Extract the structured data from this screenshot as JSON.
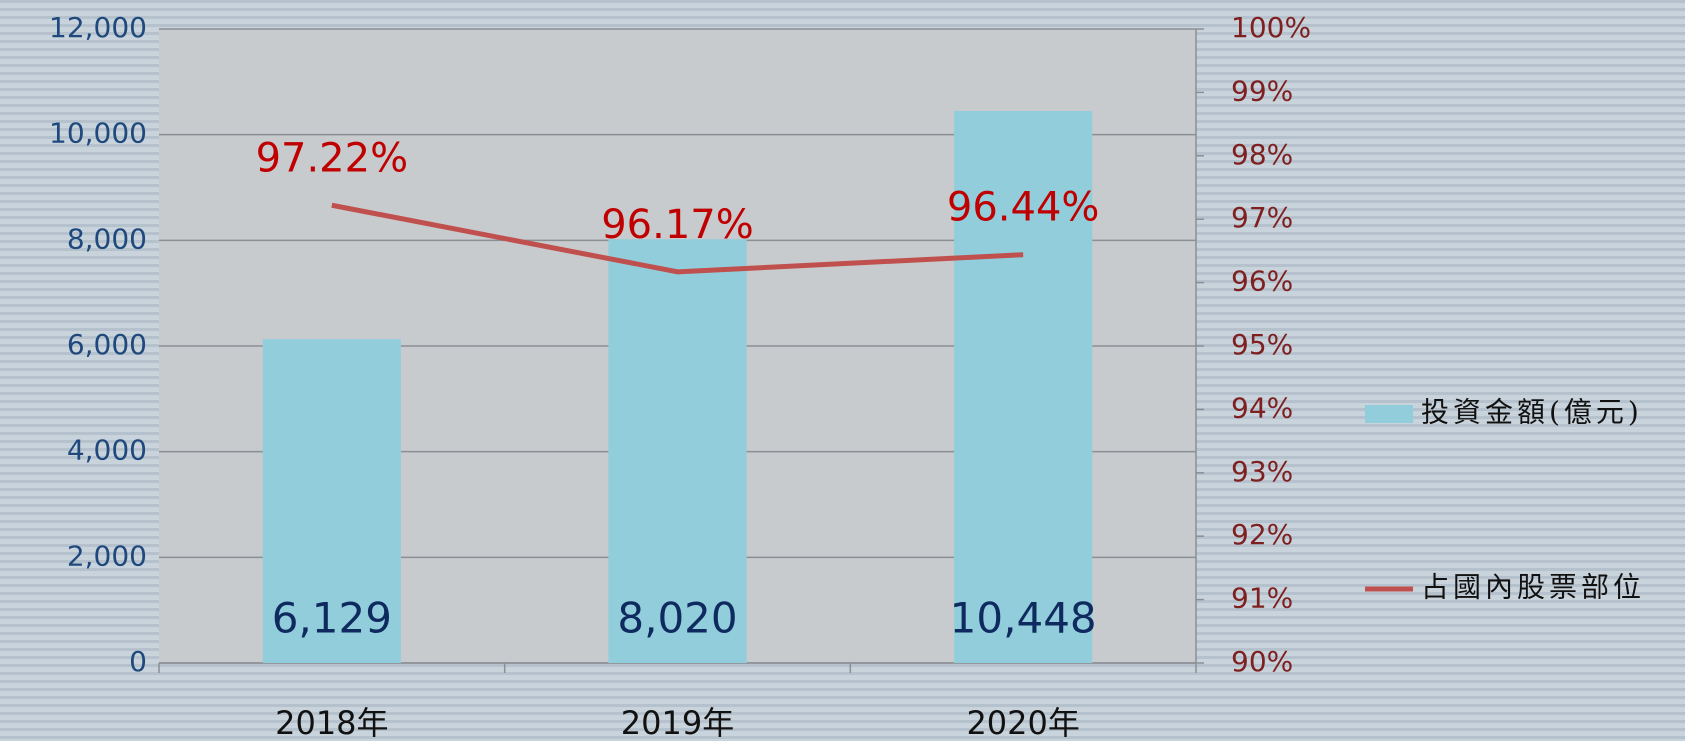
{
  "chart_data": {
    "type": "bar",
    "categories": [
      "2018年",
      "2019年",
      "2020年"
    ],
    "series": [
      {
        "name": "投資金額(億元)",
        "type": "bar",
        "color": "#92cddc",
        "values": [
          6129,
          8020,
          10448
        ],
        "value_labels": [
          "6,129",
          "8,020",
          "10,448"
        ]
      },
      {
        "name": "占國內股票部位",
        "type": "line",
        "axis": "y2",
        "color": "#c0504d",
        "values": [
          97.22,
          96.17,
          96.44
        ],
        "value_labels": [
          "97.22%",
          "96.17%",
          "96.44%"
        ]
      }
    ],
    "ylim": [
      0,
      12000
    ],
    "yticks": [
      0,
      {
        "value": 2000,
        "label": "2,000"
      },
      {
        "value": 4000,
        "label": "4,000"
      },
      {
        "value": 6000,
        "label": "6,000"
      },
      {
        "value": 8000,
        "label": "8,000"
      },
      {
        "value": 10000,
        "label": "10,000"
      },
      {
        "value": 12000,
        "label": "12,000"
      }
    ],
    "y2lim": [
      90,
      100
    ],
    "y2ticks": [
      {
        "value": 90,
        "label": "90%"
      },
      {
        "value": 91,
        "label": "91%"
      },
      {
        "value": 92,
        "label": "92%"
      },
      {
        "value": 93,
        "label": "93%"
      },
      {
        "value": 94,
        "label": "94%"
      },
      {
        "value": 95,
        "label": "95%"
      },
      {
        "value": 96,
        "label": "96%"
      },
      {
        "value": 97,
        "label": "97%"
      },
      {
        "value": 98,
        "label": "98%"
      },
      {
        "value": 99,
        "label": "99%"
      },
      {
        "value": 100,
        "label": "100%"
      }
    ],
    "grid": true,
    "legend": "right"
  }
}
